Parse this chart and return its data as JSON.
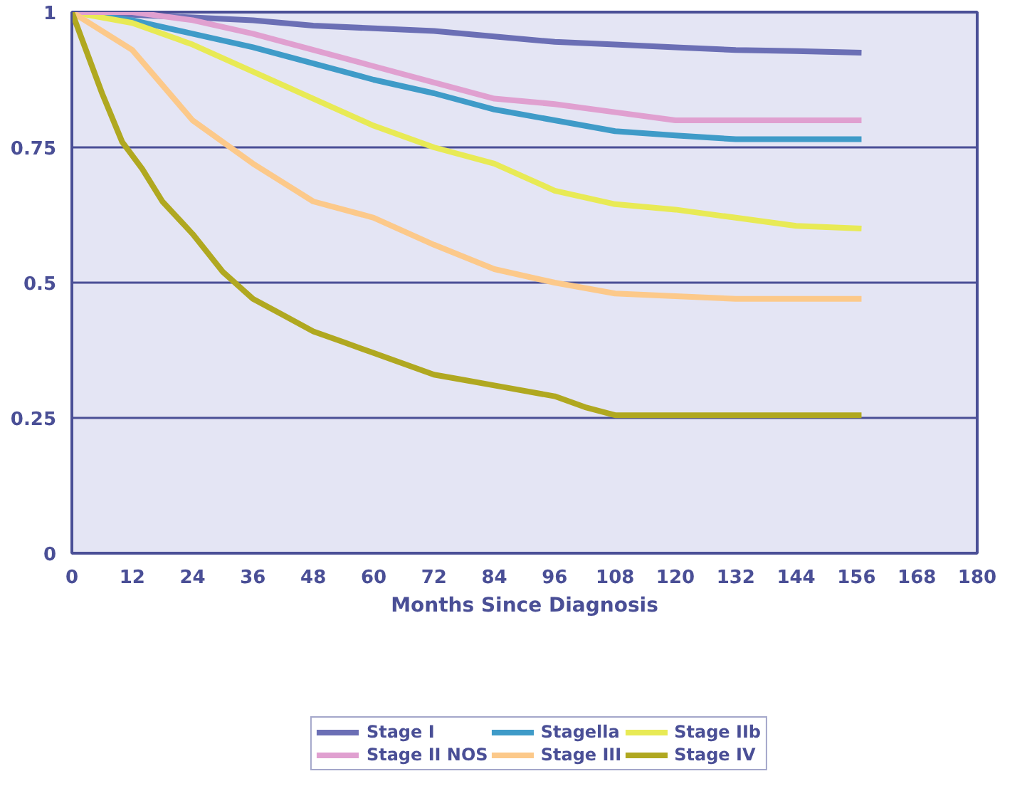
{
  "chart_data": {
    "type": "line",
    "xlabel": "Months Since Diagnosis",
    "x": [
      0,
      12,
      24,
      36,
      48,
      60,
      72,
      84,
      96,
      108,
      120,
      132,
      144,
      157
    ],
    "xlim": [
      0,
      180
    ],
    "xticks": [
      0,
      12,
      24,
      36,
      48,
      60,
      72,
      84,
      96,
      108,
      120,
      132,
      144,
      156,
      168,
      180
    ],
    "ylim": [
      0,
      1
    ],
    "yticks": [
      0,
      0.25,
      0.5,
      0.75,
      1
    ],
    "grid": "y",
    "legend": "bottom",
    "line_style": "solid",
    "marker": "none",
    "series": [
      {
        "name": "Stage I",
        "color": "#6b6fb5",
        "values": [
          1,
          0.995,
          0.99,
          0.985,
          0.975,
          0.97,
          0.965,
          0.955,
          0.945,
          0.94,
          0.935,
          0.93,
          0.928,
          0.925
        ]
      },
      {
        "name": "Stagella",
        "color": "#3f9bc8",
        "values": [
          1,
          0.985,
          0.96,
          0.935,
          0.905,
          0.875,
          0.85,
          0.82,
          0.8,
          0.78,
          0.772,
          0.765,
          0.765,
          0.765
        ]
      },
      {
        "name": "Stage IIb",
        "color": "#e8ea55",
        "values": [
          1,
          0.98,
          0.94,
          0.89,
          0.84,
          0.79,
          0.75,
          0.72,
          0.67,
          0.645,
          0.635,
          0.62,
          0.605,
          0.6
        ]
      },
      {
        "name": "Stage II NOS",
        "color": "#e0a0d0",
        "values": [
          1,
          1,
          0.985,
          0.96,
          0.93,
          0.9,
          0.87,
          0.84,
          0.83,
          0.815,
          0.8,
          0.8,
          0.8,
          0.8
        ]
      },
      {
        "name": "Stage III",
        "color": "#fcc98a",
        "values": [
          1,
          0.93,
          0.8,
          0.72,
          0.65,
          0.62,
          0.57,
          0.525,
          0.5,
          0.48,
          0.475,
          0.47,
          0.47,
          0.47
        ]
      },
      {
        "name": "Stage IV",
        "color": "#b0a820",
        "x": [
          0,
          2,
          6,
          10,
          14,
          18,
          24,
          30,
          36,
          42,
          48,
          54,
          60,
          66,
          72,
          78,
          84,
          96,
          102,
          108,
          157
        ],
        "values": [
          1,
          0.95,
          0.85,
          0.76,
          0.71,
          0.65,
          0.59,
          0.52,
          0.47,
          0.44,
          0.41,
          0.39,
          0.37,
          0.35,
          0.33,
          0.32,
          0.31,
          0.29,
          0.27,
          0.255,
          0.255
        ]
      }
    ]
  }
}
